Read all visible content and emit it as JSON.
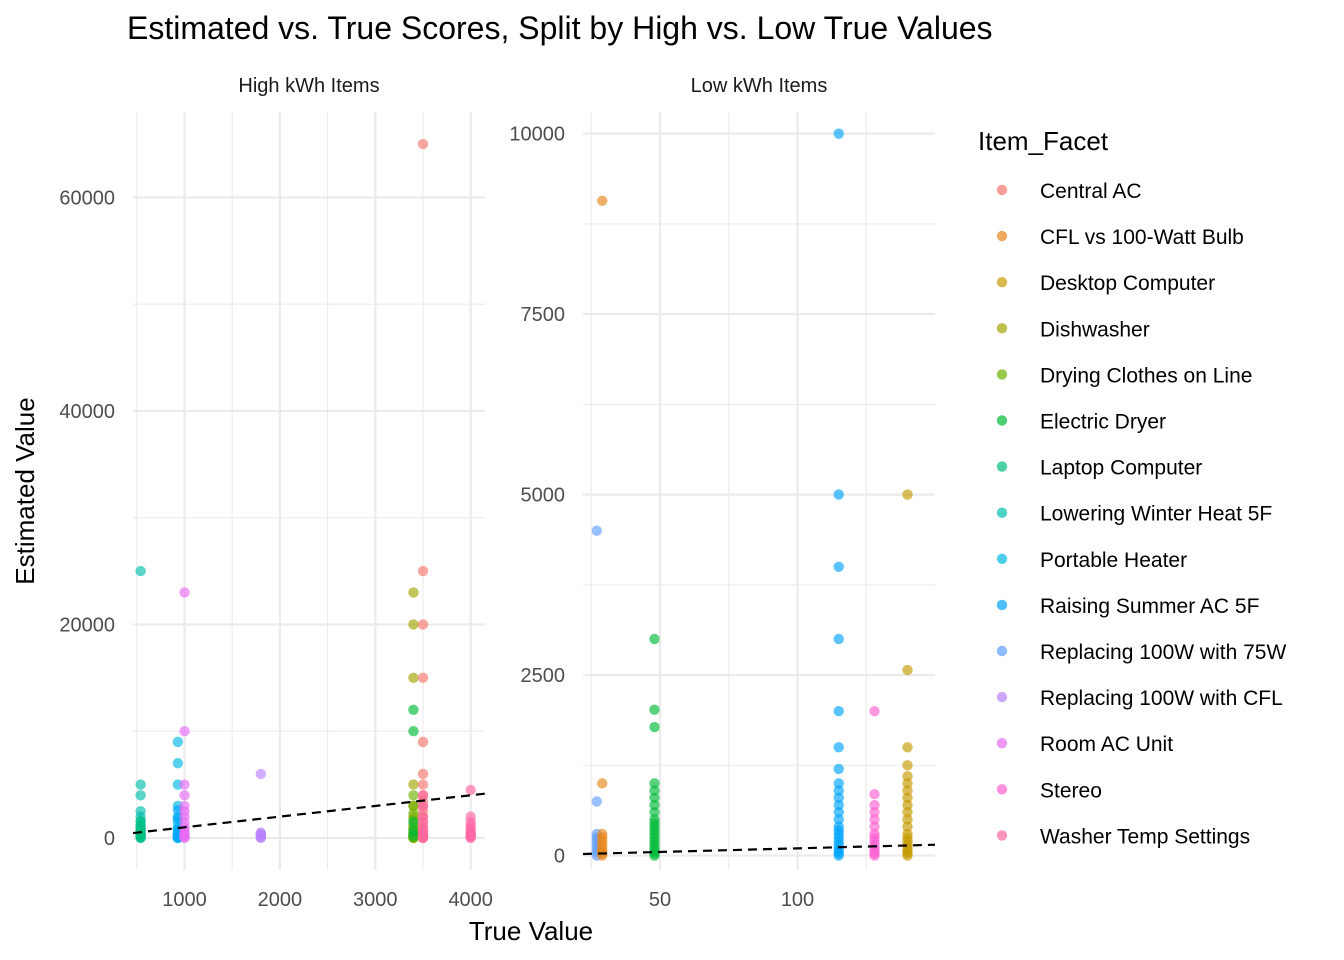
{
  "chart_data": {
    "type": "scatter",
    "title": "Estimated vs. True Scores, Split by High vs. Low True Values",
    "xlabel": "True Value",
    "ylabel": "Estimated Value",
    "legend": {
      "title": "Item_Facet",
      "placement": "right",
      "items": [
        {
          "name": "Central AC",
          "color": "#F8766D"
        },
        {
          "name": "CFL vs 100-Watt Bulb",
          "color": "#E6861A"
        },
        {
          "name": "Desktop Computer",
          "color": "#C49A00"
        },
        {
          "name": "Dishwasher",
          "color": "#A3A500"
        },
        {
          "name": "Drying Clothes on Line",
          "color": "#6FB100"
        },
        {
          "name": "Electric Dryer",
          "color": "#00BA38"
        },
        {
          "name": "Laptop Computer",
          "color": "#00BF7D"
        },
        {
          "name": "Lowering Winter Heat 5F",
          "color": "#00BFAE"
        },
        {
          "name": "Portable Heater",
          "color": "#00B9E3"
        },
        {
          "name": "Raising Summer AC 5F",
          "color": "#00A5FF"
        },
        {
          "name": "Replacing 100W with 75W",
          "color": "#619CFF"
        },
        {
          "name": "Replacing 100W with CFL",
          "color": "#B983FF"
        },
        {
          "name": "Room AC Unit",
          "color": "#E76BF3"
        },
        {
          "name": "Stereo",
          "color": "#FD61D1"
        },
        {
          "name": "Washer Temp Settings",
          "color": "#FF67A4"
        }
      ]
    },
    "reference_line": "y = x",
    "grid": true,
    "panels": [
      {
        "title": "High kWh Items",
        "xlim": [
          460,
          4150
        ],
        "ylim": [
          -3000,
          68000
        ],
        "x_ticks": [
          1000,
          2000,
          3000,
          4000
        ],
        "x_tick_labels": [
          "1000",
          "2000",
          "3000",
          "4000"
        ],
        "y_ticks": [
          0,
          20000,
          40000,
          60000
        ],
        "y_tick_labels": [
          "0",
          "20000",
          "40000",
          "60000"
        ],
        "series": [
          {
            "name": "Lowering Winter Heat 5F",
            "x": 540,
            "y": [
              0,
              100,
              200,
              300,
              400,
              500,
              700,
              900,
              1200,
              1500,
              2000,
              2500,
              4000,
              5000,
              25000
            ]
          },
          {
            "name": "Laptop Computer",
            "x": 540,
            "y": [
              50,
              250,
              600,
              1000,
              1600
            ]
          },
          {
            "name": "Portable Heater",
            "x": 930,
            "y": [
              0,
              100,
              200,
              300,
              500,
              700,
              1000,
              1500,
              2000,
              3000,
              5000,
              7000,
              9000
            ]
          },
          {
            "name": "Raising Summer AC 5F",
            "x": 930,
            "y": [
              0,
              250,
              800,
              1800,
              2600
            ]
          },
          {
            "name": "Room AC Unit",
            "x": 1000,
            "y": [
              0,
              100,
              200,
              300,
              500,
              800,
              1000,
              1500,
              2000,
              2500,
              3000,
              4000,
              5000,
              10000,
              23000
            ]
          },
          {
            "name": "Replacing 100W with CFL",
            "x": 1800,
            "y": [
              0,
              100,
              200,
              300,
              400,
              500,
              6000
            ]
          },
          {
            "name": "Dishwasher",
            "x": 3400,
            "y": [
              0,
              100,
              300,
              500,
              1000,
              2000,
              3000,
              5000,
              15000,
              20000,
              23000
            ]
          },
          {
            "name": "Drying Clothes on Line",
            "x": 3400,
            "y": [
              0,
              50,
              150,
              300,
              500,
              800,
              1200,
              1700,
              2300,
              3000,
              4000
            ]
          },
          {
            "name": "Electric Dryer",
            "x": 3400,
            "y": [
              200,
              700,
              1500,
              10000,
              12000
            ]
          },
          {
            "name": "Central AC",
            "x": 3500,
            "y": [
              0,
              100,
              200,
              300,
              500,
              700,
              1000,
              1500,
              2000,
              2500,
              3000,
              3500,
              4000,
              5000,
              6000,
              9000,
              15000,
              20000,
              25000,
              65000
            ]
          },
          {
            "name": "Washer Temp Settings",
            "x": 3500,
            "y": [
              0,
              200,
              600,
              1000,
              1500,
              2000,
              3000,
              4000
            ]
          },
          {
            "name": "Washer Temp Settings",
            "x": 4000,
            "y": [
              0,
              100,
              200,
              300,
              400,
              500,
              700,
              900,
              1200,
              1500,
              2000,
              4500
            ]
          }
        ]
      },
      {
        "title": "Low kWh Items",
        "xlim": [
          22,
          150
        ],
        "ylim": [
          -200,
          10300
        ],
        "x_ticks": [
          50,
          100
        ],
        "x_tick_labels": [
          "50",
          "100"
        ],
        "y_ticks": [
          0,
          2500,
          5000,
          7500,
          10000
        ],
        "y_tick_labels": [
          "0",
          "2500",
          "5000",
          "7500",
          "10000"
        ],
        "series": [
          {
            "name": "Replacing 100W with 75W",
            "x": 27,
            "y": [
              0,
              50,
              100,
              150,
              200,
              250,
              300,
              750,
              4500
            ]
          },
          {
            "name": "CFL vs 100-Watt Bulb",
            "x": 29,
            "y": [
              0,
              30,
              60,
              100,
              150,
              200,
              250,
              300,
              1000,
              9070
            ]
          },
          {
            "name": "Electric Dryer",
            "x": 48,
            "y": [
              0,
              30,
              60,
              100,
              150,
              200,
              250,
              300,
              350,
              400,
              450,
              500,
              600,
              700,
              800,
              900,
              1000,
              1780,
              2020,
              3000
            ]
          },
          {
            "name": "Raising Summer AC 5F",
            "x": 115,
            "y": [
              0,
              30,
              60,
              100,
              150,
              200,
              250,
              300,
              350,
              400,
              500,
              600,
              700,
              800,
              900,
              1000,
              1200,
              1500,
              2000,
              3000,
              4000,
              5000,
              10000
            ]
          },
          {
            "name": "Stereo",
            "x": 128,
            "y": [
              0,
              30,
              60,
              100,
              150,
              200,
              250,
              300,
              400,
              500,
              600,
              700,
              850,
              2000
            ]
          },
          {
            "name": "Desktop Computer",
            "x": 140,
            "y": [
              0,
              30,
              60,
              100,
              150,
              200,
              250,
              300,
              400,
              500,
              600,
              700,
              800,
              900,
              1000,
              1100,
              1250,
              1500,
              2570,
              5000
            ]
          }
        ]
      }
    ]
  }
}
